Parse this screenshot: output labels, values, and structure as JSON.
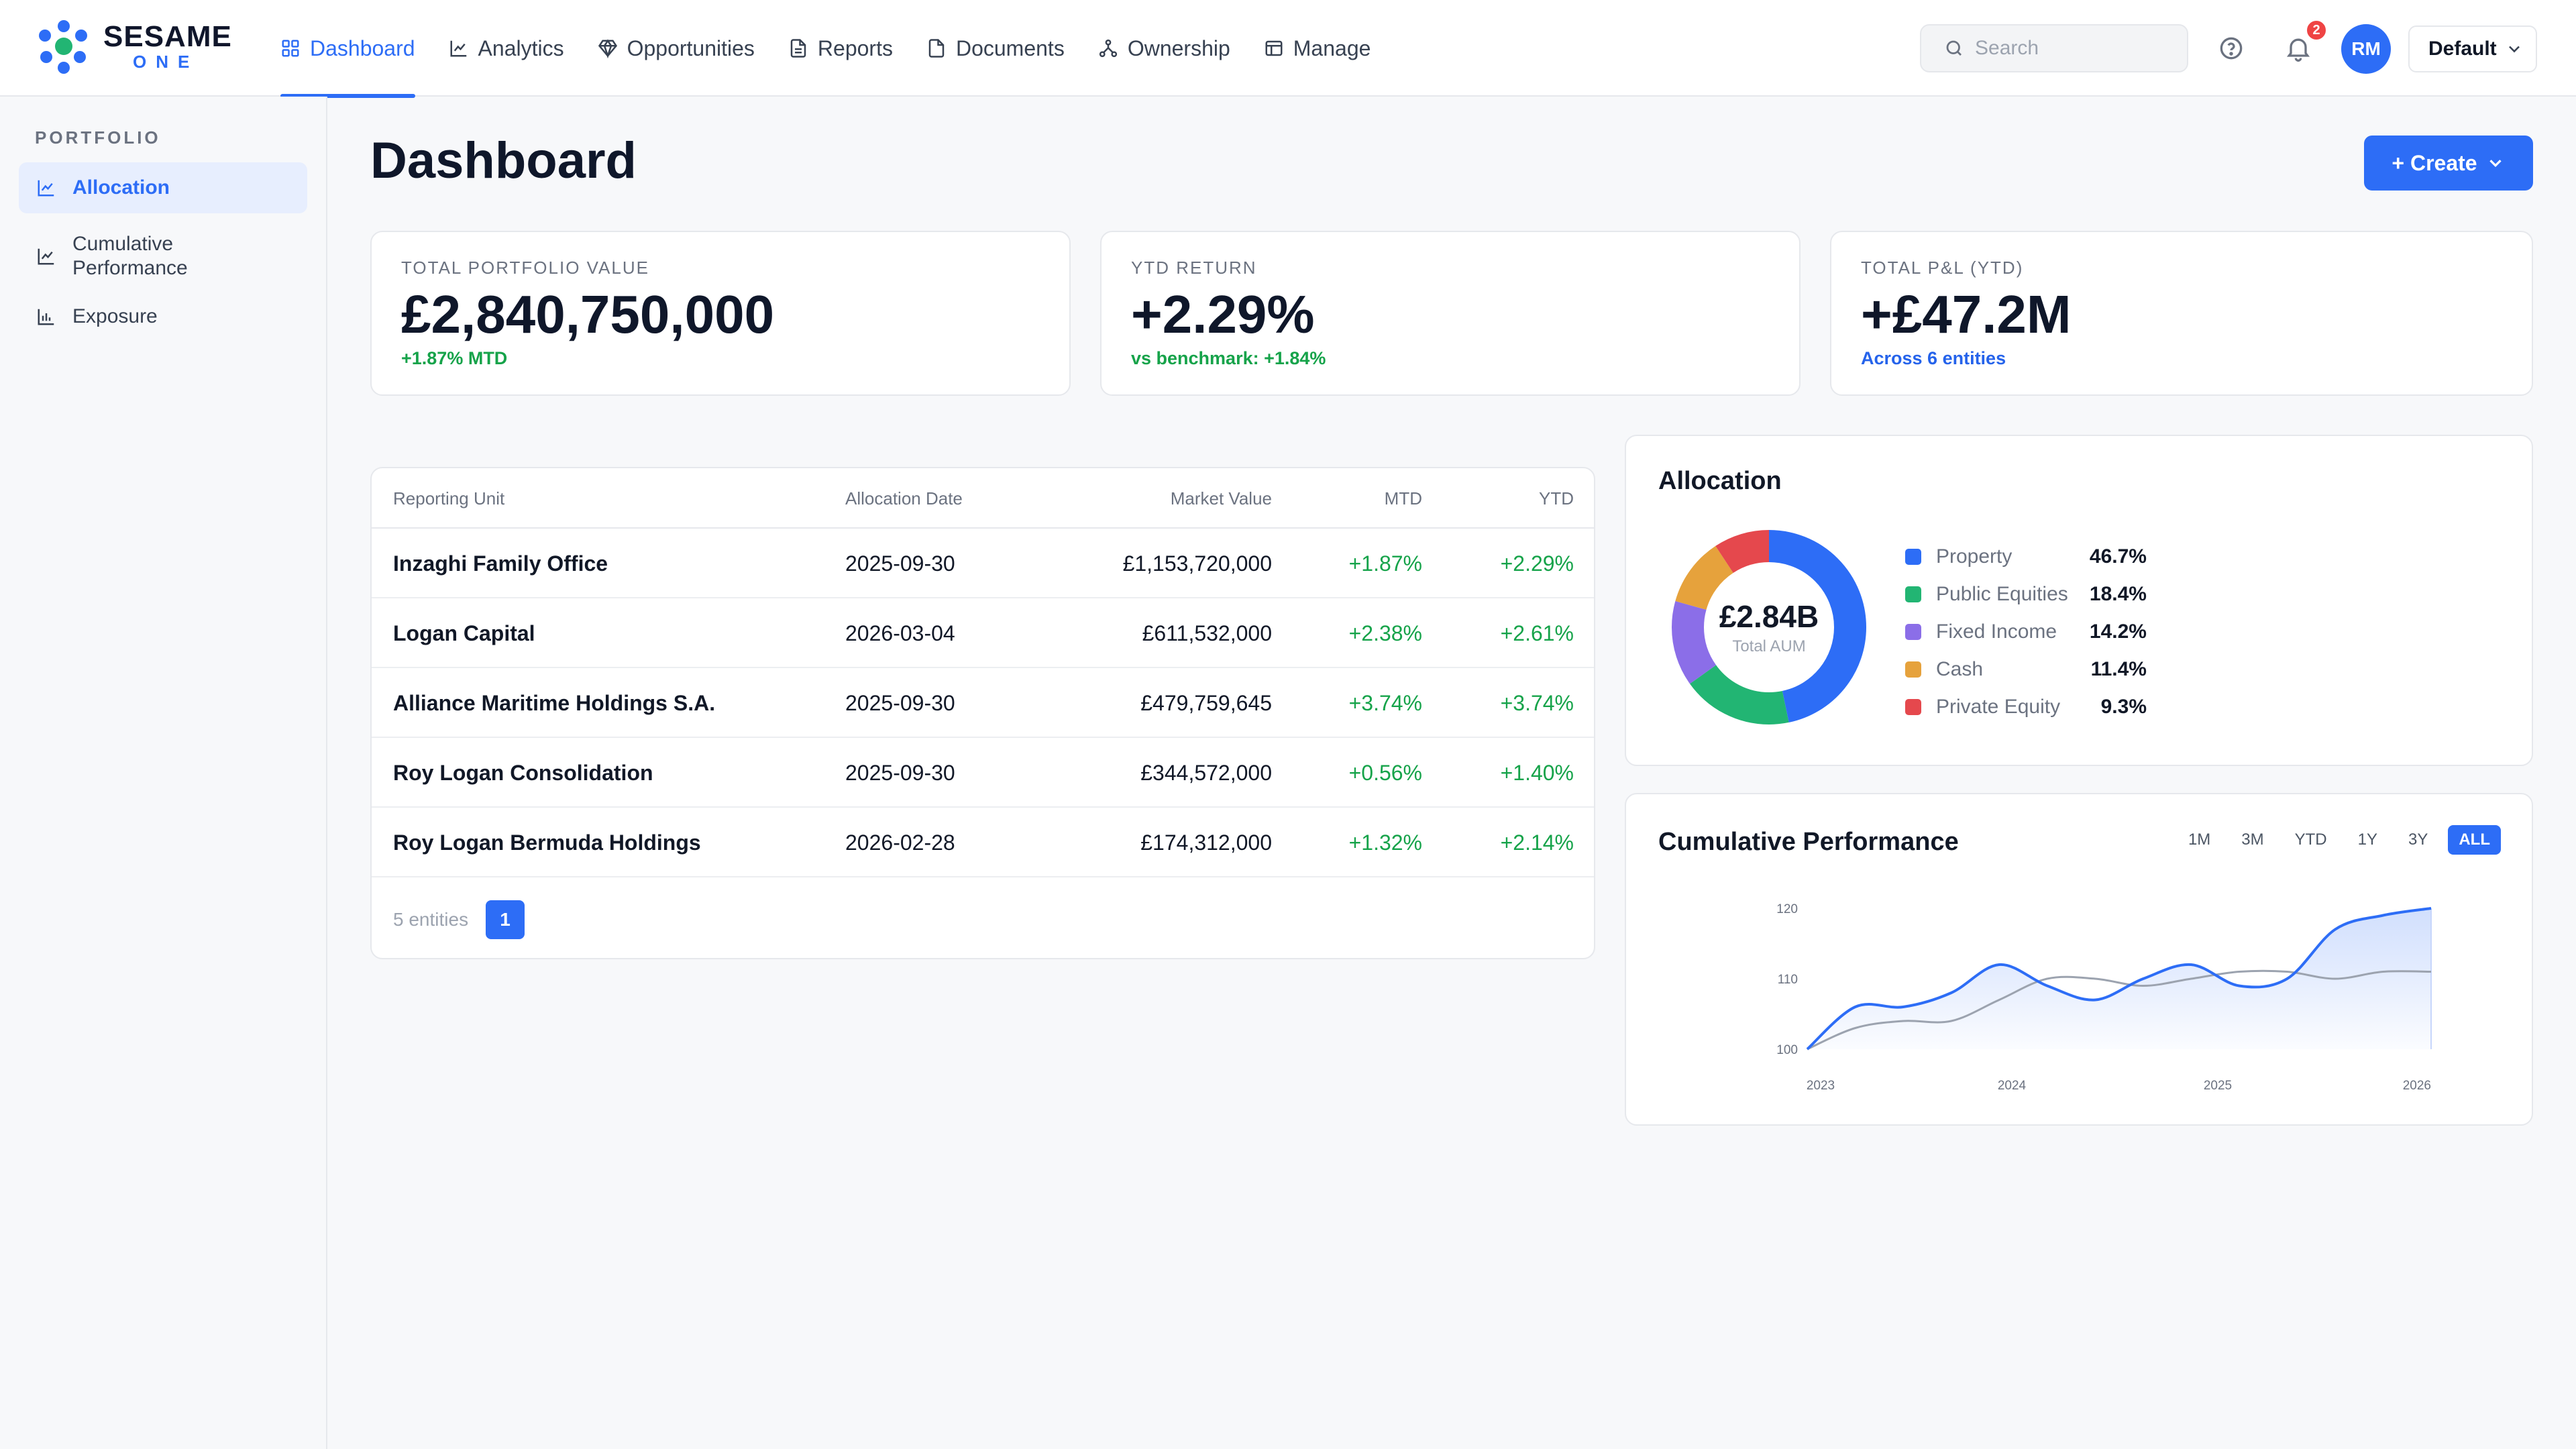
{
  "brand": {
    "name": "SESAME",
    "sub": "ONE",
    "colors": {
      "accent": "#2d6df6",
      "positive": "#16a34a"
    }
  },
  "nav": [
    {
      "label": "Dashboard",
      "icon": "grid-icon",
      "active": true
    },
    {
      "label": "Analytics",
      "icon": "line-chart-icon"
    },
    {
      "label": "Opportunities",
      "icon": "diamond-icon"
    },
    {
      "label": "Reports",
      "icon": "report-icon"
    },
    {
      "label": "Documents",
      "icon": "document-icon"
    },
    {
      "label": "Ownership",
      "icon": "hierarchy-icon"
    },
    {
      "label": "Manage",
      "icon": "manage-icon"
    }
  ],
  "header": {
    "search_placeholder": "Search",
    "notification_count": "2",
    "avatar_initials": "RM",
    "profile_select": "Default"
  },
  "sidebar": {
    "section": "PORTFOLIO",
    "items": [
      {
        "label": "Allocation",
        "icon": "line-chart-icon",
        "active": true
      },
      {
        "label": "Cumulative Performance",
        "icon": "line-chart-icon"
      },
      {
        "label": "Exposure",
        "icon": "bar-chart-icon"
      }
    ]
  },
  "page": {
    "title": "Dashboard",
    "create_label": "+ Create"
  },
  "kpis": [
    {
      "label": "TOTAL PORTFOLIO VALUE",
      "value": "£2,840,750,000",
      "sub": "+1.87% MTD"
    },
    {
      "label": "YTD RETURN",
      "value": "+2.29%",
      "sub": "vs benchmark: +1.84%"
    },
    {
      "label": "TOTAL P&L (YTD)",
      "value": "+£47.2M",
      "sub": "Across 6 entities"
    }
  ],
  "table": {
    "columns": [
      "Reporting Unit",
      "Allocation Date",
      "Market Value",
      "MTD",
      "YTD"
    ],
    "rows": [
      {
        "unit": "Inzaghi Family Office",
        "date": "2025-09-30",
        "value": "£1,153,720,000",
        "mtd": "+1.87%",
        "ytd": "+2.29%"
      },
      {
        "unit": "Logan Capital",
        "date": "2026-03-04",
        "value": "£611,532,000",
        "mtd": "+2.38%",
        "ytd": "+2.61%"
      },
      {
        "unit": "Alliance Maritime Holdings S.A.",
        "date": "2025-09-30",
        "value": "£479,759,645",
        "mtd": "+3.74%",
        "ytd": "+3.74%"
      },
      {
        "unit": "Roy Logan Consolidation",
        "date": "2025-09-30",
        "value": "£344,572,000",
        "mtd": "+0.56%",
        "ytd": "+1.40%"
      },
      {
        "unit": "Roy Logan Bermuda Holdings",
        "date": "2026-02-28",
        "value": "£174,312,000",
        "mtd": "+1.32%",
        "ytd": "+2.14%"
      }
    ],
    "footer_count": "5 entities",
    "page": "1"
  },
  "allocation": {
    "title": "Allocation",
    "center_value": "£2.84B",
    "center_label": "Total AUM",
    "items": [
      {
        "name": "Property",
        "pct": "46.7%",
        "value": 46.7,
        "color": "#2d6df6"
      },
      {
        "name": "Public Equities",
        "pct": "18.4%",
        "value": 18.4,
        "color": "#22b573"
      },
      {
        "name": "Fixed Income",
        "pct": "14.2%",
        "value": 14.2,
        "color": "#8b6ee8"
      },
      {
        "name": "Cash",
        "pct": "11.4%",
        "value": 11.4,
        "color": "#e6a23c"
      },
      {
        "name": "Private Equity",
        "pct": "9.3%",
        "value": 9.3,
        "color": "#e5484d"
      }
    ]
  },
  "performance": {
    "title": "Cumulative Performance",
    "ranges": [
      {
        "label": "1M"
      },
      {
        "label": "3M"
      },
      {
        "label": "YTD"
      },
      {
        "label": "1Y"
      },
      {
        "label": "3Y"
      },
      {
        "label": "ALL",
        "active": true
      }
    ]
  },
  "chart_data": [
    {
      "type": "pie",
      "categories": [
        "Property",
        "Public Equities",
        "Fixed Income",
        "Cash",
        "Private Equity"
      ],
      "values": [
        46.7,
        18.4,
        14.2,
        11.4,
        9.3
      ],
      "title": "Allocation"
    },
    {
      "type": "line",
      "title": "Cumulative Performance",
      "x": [
        "2023-01",
        "2023-04",
        "2023-07",
        "2023-10",
        "2024-01",
        "2024-04",
        "2024-07",
        "2024-10",
        "2025-01",
        "2025-04",
        "2025-07",
        "2025-10",
        "2026-01",
        "2026-03"
      ],
      "x_ticks": [
        "2023",
        "2024",
        "2025",
        "2026"
      ],
      "y_ticks": [
        100,
        110,
        120
      ],
      "ylim": [
        100,
        120
      ],
      "series": [
        {
          "values": [
            100,
            106,
            106,
            108,
            112,
            109,
            107,
            110,
            112,
            109,
            110,
            117,
            119,
            120
          ],
          "color": "#2d6df6"
        },
        {
          "values": [
            100,
            103,
            104,
            104,
            107,
            110,
            110,
            109,
            110,
            111,
            111,
            110,
            111,
            111
          ],
          "color": "#9ca3af"
        }
      ],
      "grid": false
    }
  ]
}
